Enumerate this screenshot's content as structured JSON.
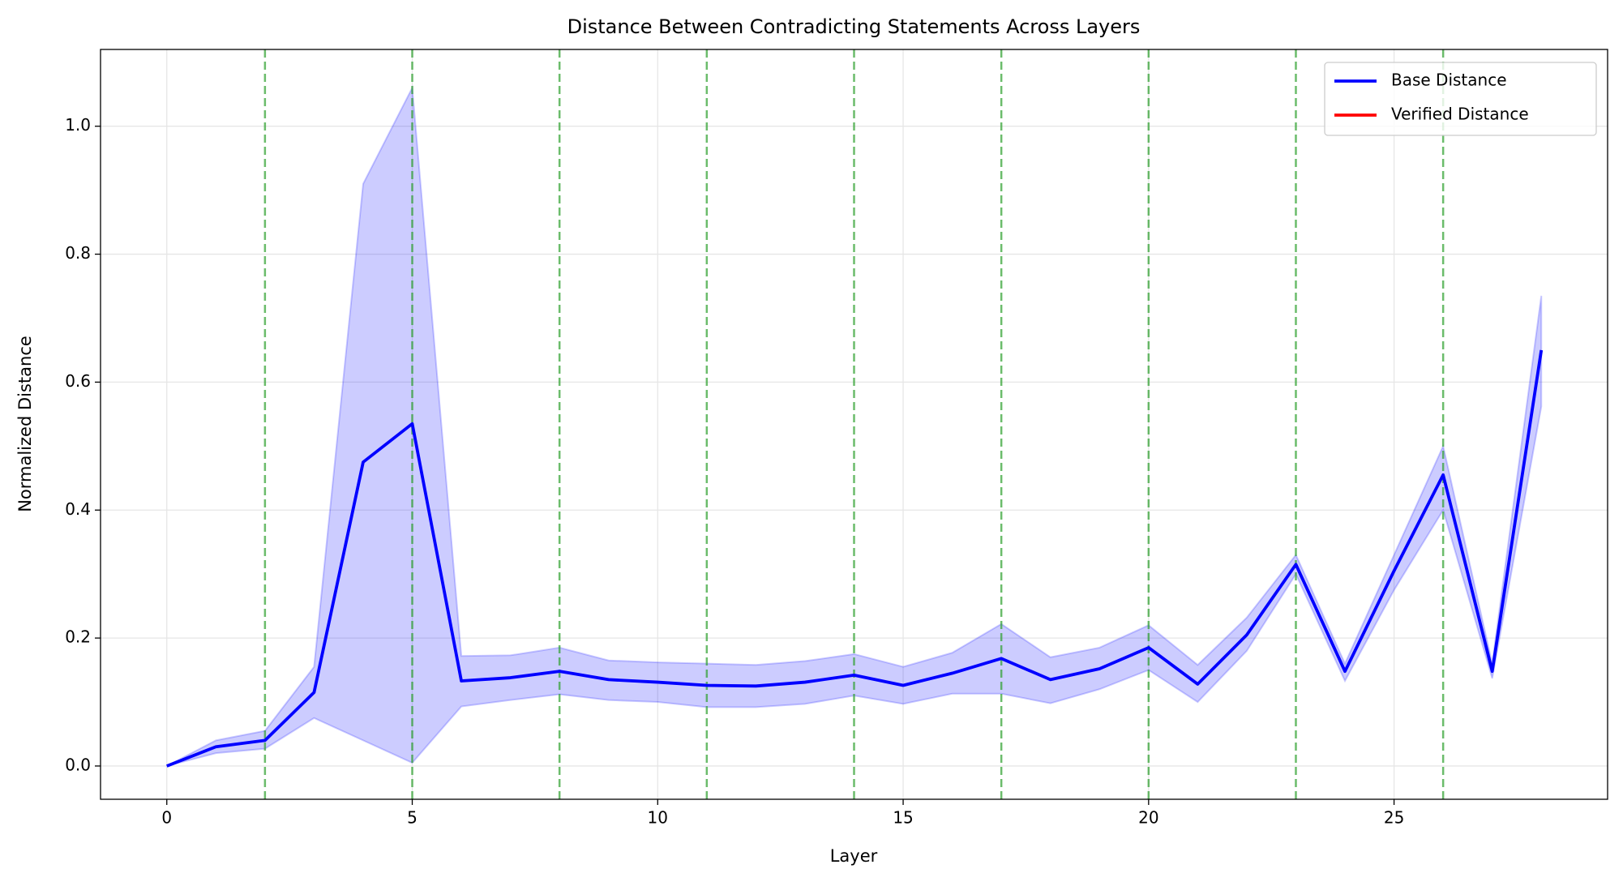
{
  "chart_data": {
    "type": "line",
    "title": "Distance Between Contradicting Statements Across Layers",
    "xlabel": "Layer",
    "ylabel": "Normalized Distance",
    "x": [
      0,
      1,
      2,
      3,
      4,
      5,
      6,
      7,
      8,
      9,
      10,
      11,
      12,
      13,
      14,
      15,
      16,
      17,
      18,
      19,
      20,
      21,
      22,
      23,
      24,
      25,
      26,
      27,
      28
    ],
    "series": [
      {
        "name": "Base Distance",
        "color": "#0000ff",
        "values": [
          0.0,
          0.03,
          0.04,
          0.115,
          0.475,
          0.535,
          0.133,
          0.138,
          0.148,
          0.135,
          0.131,
          0.126,
          0.125,
          0.131,
          0.142,
          0.126,
          0.145,
          0.168,
          0.135,
          0.152,
          0.185,
          0.128,
          0.205,
          0.315,
          0.148,
          0.305,
          0.455,
          0.148,
          0.65
        ],
        "upper": [
          0.0,
          0.04,
          0.055,
          0.155,
          0.91,
          1.06,
          0.172,
          0.173,
          0.185,
          0.165,
          0.162,
          0.16,
          0.158,
          0.164,
          0.175,
          0.155,
          0.177,
          0.222,
          0.17,
          0.185,
          0.22,
          0.158,
          0.232,
          0.33,
          0.16,
          0.33,
          0.5,
          0.16,
          0.735
        ],
        "lower": [
          0.0,
          0.02,
          0.027,
          0.075,
          0.04,
          0.005,
          0.093,
          0.103,
          0.112,
          0.103,
          0.1,
          0.092,
          0.092,
          0.097,
          0.11,
          0.097,
          0.113,
          0.113,
          0.098,
          0.12,
          0.15,
          0.1,
          0.18,
          0.3,
          0.133,
          0.275,
          0.4,
          0.137,
          0.562
        ],
        "band_color": "#0000ff"
      },
      {
        "name": "Verified Distance",
        "color": "#ff0000",
        "values": [
          null,
          null,
          null,
          null,
          null,
          null,
          null,
          null,
          null,
          null,
          null,
          null,
          null,
          null,
          null,
          null,
          null,
          null,
          null,
          null,
          null,
          null,
          null,
          null,
          null,
          null,
          null,
          null,
          null
        ]
      }
    ],
    "vlines": [
      2,
      5,
      8,
      11,
      14,
      17,
      20,
      23,
      26
    ],
    "vline_color": "#2ca02c",
    "xlim": [
      -1.35,
      29.35
    ],
    "ylim": [
      -0.052,
      1.12
    ],
    "xticks": [
      0,
      5,
      10,
      15,
      20,
      25
    ],
    "yticks": [
      {
        "value": 0,
        "label": "0.0"
      },
      0.2,
      0.4,
      0.6,
      0.8,
      {
        "value": 1,
        "label": "1.0"
      }
    ],
    "grid": true,
    "legend": "upper right"
  }
}
